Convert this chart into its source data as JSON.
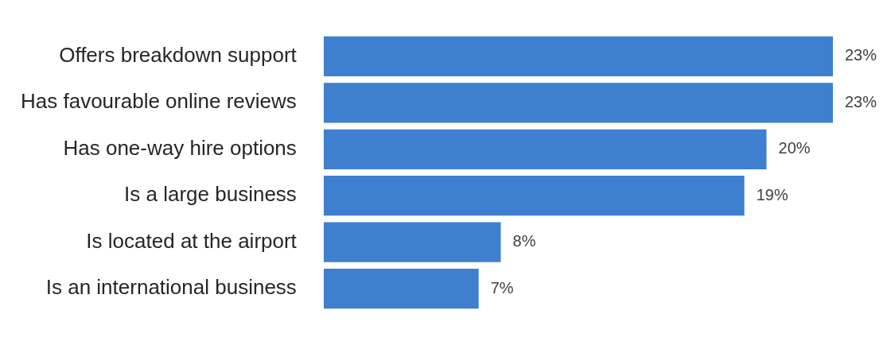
{
  "chart_data": {
    "type": "bar",
    "orientation": "horizontal",
    "categories": [
      "Offers breakdown support",
      "Has favourable online reviews",
      "Has one-way hire options",
      "Is a large business",
      "Is located at the airport",
      "Is an international business"
    ],
    "values": [
      23,
      23,
      20,
      19,
      8,
      7
    ],
    "value_labels": [
      "23%",
      "23%",
      "20%",
      "19%",
      "8%",
      "7%"
    ],
    "color": "#3f7fcf",
    "legend": false,
    "tick_labels": "y"
  }
}
